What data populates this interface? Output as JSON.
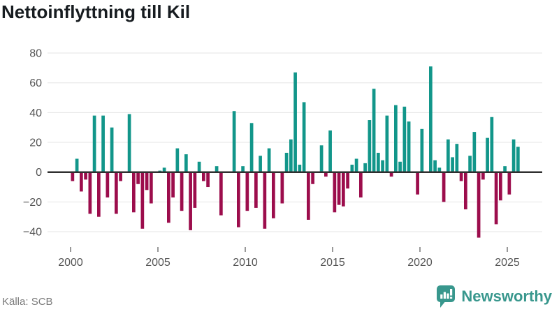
{
  "header": {
    "title": "Nettoinflyttning till Kil"
  },
  "footer": {
    "source": "Källa: SCB",
    "brand": "Newsworthy"
  },
  "colors": {
    "positive_bar": "#12968a",
    "negative_bar": "#9c0d4c",
    "brand_teal": "#38978d",
    "gridline": "#e4e4e4",
    "zero_line": "#2f2f2f",
    "axis_text": "#555555",
    "title_text": "#171c20",
    "source_text": "#7a7a7a"
  },
  "chart_data": {
    "type": "bar",
    "title": "Nettoinflyttning till Kil",
    "xlabel": "",
    "ylabel": "",
    "unit": "persons per quarter (net migration)",
    "start_quarter": "2000-Q1",
    "frequency": "quarterly",
    "values": [
      -6,
      9,
      -13,
      -5,
      -28,
      38,
      -30,
      38,
      -17,
      30,
      -28,
      -6,
      0,
      39,
      -27,
      -8,
      -38,
      -12,
      -21,
      0,
      1,
      3,
      -34,
      -17,
      16,
      -26,
      12,
      -39,
      -24,
      7,
      -6,
      -10,
      0,
      4,
      -29,
      0,
      0,
      41,
      -37,
      4,
      -26,
      33,
      -24,
      11,
      -38,
      16,
      -31,
      0,
      -21,
      13,
      22,
      67,
      5,
      47,
      -32,
      -8,
      0,
      18,
      -3,
      28,
      -27,
      -22,
      -23,
      -11,
      5,
      9,
      -17,
      6,
      35,
      56,
      13,
      8,
      38,
      -3,
      45,
      7,
      44,
      34,
      0,
      -15,
      29,
      0,
      71,
      8,
      3,
      -20,
      22,
      10,
      19,
      -6,
      -25,
      11,
      27,
      -44,
      -5,
      23,
      37,
      -35,
      -19,
      4,
      -15,
      22,
      17
    ],
    "y_ticks": [
      80,
      60,
      40,
      20,
      0,
      -20,
      -40
    ],
    "x_ticks": [
      2000,
      2005,
      2010,
      2015,
      2020,
      2025
    ],
    "ylim": [
      -50,
      85
    ],
    "grid": true,
    "legend": false
  }
}
